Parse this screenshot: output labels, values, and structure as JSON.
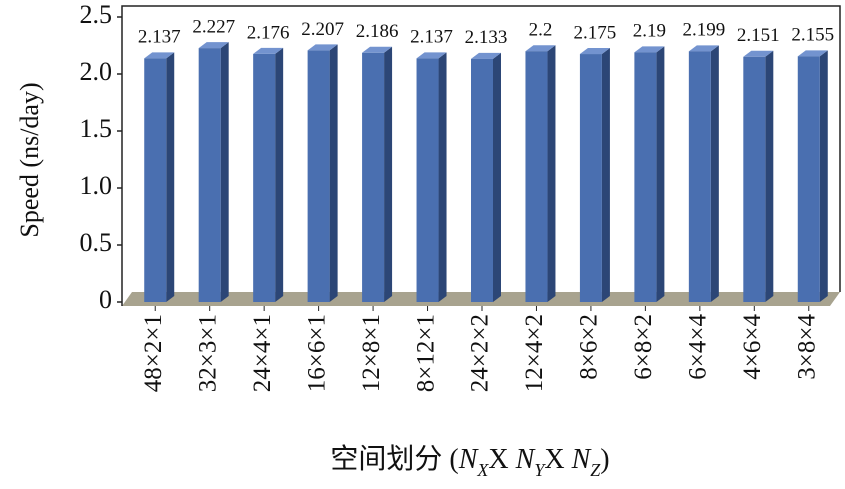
{
  "chart_data": {
    "type": "bar",
    "y_label": "Speed (ns/day)",
    "x_label": [
      "空间划分 (",
      "N",
      "X",
      "X ",
      "N",
      "Y",
      "X ",
      "N",
      "Z",
      ")"
    ],
    "categories": [
      "48×2×1",
      "32×3×1",
      "24×4×1",
      "16×6×1",
      "12×8×1",
      "8×12×1",
      "24×2×2",
      "12×4×2",
      "8×6×2",
      "6×8×2",
      "6×4×4",
      "4×6×4",
      "3×8×4"
    ],
    "values": [
      2.137,
      2.227,
      2.176,
      2.207,
      2.186,
      2.137,
      2.133,
      2.2,
      2.175,
      2.19,
      2.199,
      2.151,
      2.155
    ],
    "color": "#4a6fb0",
    "ylim": [
      0,
      2.5
    ],
    "yticks": [
      0,
      0.5,
      {
        "value": 1,
        "label": "1.0"
      },
      1.5,
      {
        "value": 2,
        "label": "2.0"
      },
      2.5
    ],
    "grid": false
  }
}
